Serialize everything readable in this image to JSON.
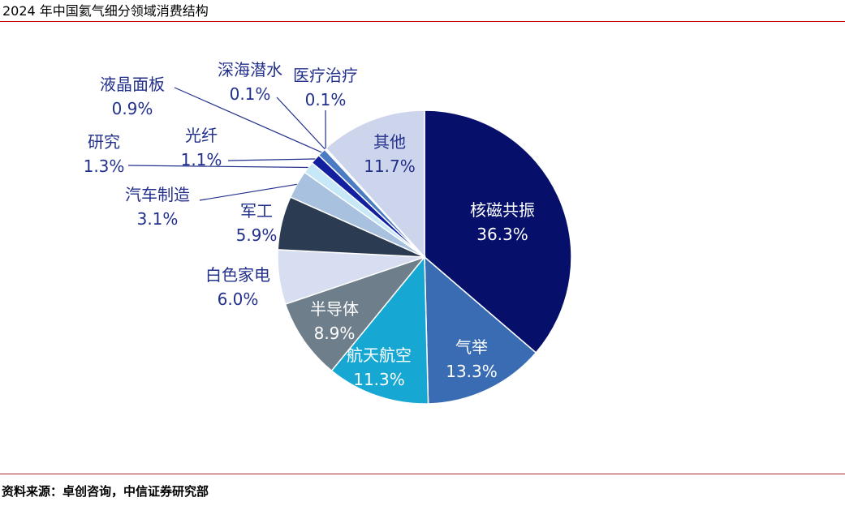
{
  "header": {
    "title": "2024 年中国氦气细分领域消费结构"
  },
  "footer": {
    "source": "资料来源：卓创咨询，中信证券研究部"
  },
  "style": {
    "top_rule_color": "#C00000",
    "bottom_rule_color": "#A6262A",
    "label_color": "#23308C",
    "background": "#FFFFFF"
  },
  "chart_data": {
    "type": "pie",
    "title": "2024 年中国氦气细分领域消费结构",
    "unit": "%",
    "start_angle_deg": 0,
    "direction": "clockwise",
    "legend": "none",
    "categories": [
      "核磁共振",
      "气举",
      "航天航空",
      "半导体",
      "白色家电",
      "军工",
      "汽车制造",
      "研究",
      "光纤",
      "液晶面板",
      "深海潜水",
      "医疗治疗",
      "其他"
    ],
    "values": [
      36.3,
      13.3,
      11.3,
      8.9,
      6.0,
      5.9,
      3.1,
      1.3,
      1.1,
      0.9,
      0.1,
      0.1,
      11.7
    ],
    "slices": [
      {
        "label": "核磁共振",
        "value": 36.3,
        "color": "#06106A",
        "text_color": "#FFFFFF",
        "label_placement": "inside",
        "leader_line": false
      },
      {
        "label": "气举",
        "value": 13.3,
        "color": "#3A6CB4",
        "text_color": "#FFFFFF",
        "label_placement": "inside",
        "leader_line": false
      },
      {
        "label": "航天航空",
        "value": 11.3,
        "color": "#16A7D3",
        "text_color": "#FFFFFF",
        "label_placement": "inside",
        "leader_line": false
      },
      {
        "label": "半导体",
        "value": 8.9,
        "color": "#6E7E8B",
        "text_color": "#FFFFFF",
        "label_placement": "inside",
        "leader_line": false
      },
      {
        "label": "白色家电",
        "value": 6.0,
        "color": "#D8DEF1",
        "text_color": "#23308C",
        "label_placement": "outside",
        "leader_line": false
      },
      {
        "label": "军工",
        "value": 5.9,
        "color": "#2B3C52",
        "text_color": "#23308C",
        "label_placement": "outside",
        "leader_line": false
      },
      {
        "label": "汽车制造",
        "value": 3.1,
        "color": "#A8C1DE",
        "text_color": "#23308C",
        "label_placement": "outside",
        "leader_line": true
      },
      {
        "label": "研究",
        "value": 1.3,
        "color": "#C6E8F7",
        "text_color": "#23308C",
        "label_placement": "outside",
        "leader_line": true
      },
      {
        "label": "光纤",
        "value": 1.1,
        "color": "#1220A0",
        "text_color": "#23308C",
        "label_placement": "outside",
        "leader_line": true
      },
      {
        "label": "液晶面板",
        "value": 0.9,
        "color": "#4A7BC3",
        "text_color": "#23308C",
        "label_placement": "outside",
        "leader_line": true
      },
      {
        "label": "深海潜水",
        "value": 0.1,
        "color": "#2E74B5",
        "text_color": "#23308C",
        "label_placement": "outside",
        "leader_line": true
      },
      {
        "label": "医疗治疗",
        "value": 0.1,
        "color": "#9CC2E5",
        "text_color": "#23308C",
        "label_placement": "outside",
        "leader_line": true
      },
      {
        "label": "其他",
        "value": 11.7,
        "color": "#CDD5ED",
        "text_color": "#23308C",
        "label_placement": "inside",
        "leader_line": false
      }
    ]
  }
}
